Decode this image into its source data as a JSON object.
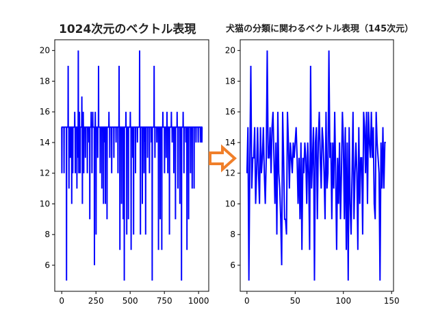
{
  "figure": {
    "background": "#ffffff",
    "arrow": {
      "icon": "right-arrow-icon",
      "color": "#f07f2a",
      "direction": "right"
    }
  },
  "chart_data": [
    {
      "type": "line",
      "title": "1024次元のベクトル表現",
      "xlabel": "",
      "ylabel": "",
      "xlim": [
        -51,
        1074
      ],
      "ylim": [
        4.3,
        20.7
      ],
      "xticks": [
        0,
        250,
        500,
        750,
        1000
      ],
      "yticks": [
        6,
        8,
        10,
        12,
        14,
        16,
        18,
        20
      ],
      "grid": false,
      "line_color": "#0000ff",
      "n_points": 1024,
      "description": "Mostly flat at 15 with frequent dips to 5–14 and occasional spikes up to 20",
      "baseline": 15,
      "events": [
        [
          0,
          12
        ],
        [
          8,
          15
        ],
        [
          16,
          12
        ],
        [
          24,
          15
        ],
        [
          34,
          5
        ],
        [
          38,
          15
        ],
        [
          46,
          19
        ],
        [
          52,
          11
        ],
        [
          56,
          15
        ],
        [
          62,
          13
        ],
        [
          66,
          15
        ],
        [
          72,
          10
        ],
        [
          76,
          15
        ],
        [
          80,
          12
        ],
        [
          86,
          15
        ],
        [
          94,
          16
        ],
        [
          98,
          12
        ],
        [
          104,
          15
        ],
        [
          110,
          11
        ],
        [
          116,
          13
        ],
        [
          120,
          20
        ],
        [
          124,
          12
        ],
        [
          128,
          16
        ],
        [
          134,
          12
        ],
        [
          140,
          15
        ],
        [
          146,
          17
        ],
        [
          150,
          10
        ],
        [
          156,
          16
        ],
        [
          160,
          12
        ],
        [
          166,
          15
        ],
        [
          172,
          13
        ],
        [
          178,
          15
        ],
        [
          186,
          12
        ],
        [
          190,
          15
        ],
        [
          198,
          14
        ],
        [
          204,
          9
        ],
        [
          210,
          15
        ],
        [
          214,
          16
        ],
        [
          220,
          12
        ],
        [
          226,
          16
        ],
        [
          232,
          15
        ],
        [
          238,
          6
        ],
        [
          244,
          16
        ],
        [
          250,
          8
        ],
        [
          256,
          15
        ],
        [
          262,
          13
        ],
        [
          268,
          19
        ],
        [
          274,
          15
        ],
        [
          280,
          12
        ],
        [
          286,
          15
        ],
        [
          292,
          11
        ],
        [
          298,
          15
        ],
        [
          304,
          10
        ],
        [
          310,
          14
        ],
        [
          318,
          10
        ],
        [
          324,
          15
        ],
        [
          330,
          9
        ],
        [
          336,
          15
        ],
        [
          344,
          16
        ],
        [
          350,
          13
        ],
        [
          356,
          15
        ],
        [
          364,
          12
        ],
        [
          372,
          15
        ],
        [
          380,
          13
        ],
        [
          388,
          15
        ],
        [
          396,
          14
        ],
        [
          404,
          15
        ],
        [
          410,
          12
        ],
        [
          418,
          19
        ],
        [
          424,
          7
        ],
        [
          430,
          15
        ],
        [
          436,
          10
        ],
        [
          442,
          15
        ],
        [
          448,
          9
        ],
        [
          456,
          5
        ],
        [
          462,
          15
        ],
        [
          468,
          16
        ],
        [
          474,
          8
        ],
        [
          480,
          15
        ],
        [
          486,
          9
        ],
        [
          492,
          15
        ],
        [
          500,
          16
        ],
        [
          506,
          7
        ],
        [
          512,
          15
        ],
        [
          518,
          13
        ],
        [
          524,
          8
        ],
        [
          530,
          15
        ],
        [
          538,
          12
        ],
        [
          546,
          15
        ],
        [
          552,
          14
        ],
        [
          560,
          15
        ],
        [
          568,
          20
        ],
        [
          574,
          8
        ],
        [
          580,
          15
        ],
        [
          588,
          10
        ],
        [
          594,
          15
        ],
        [
          600,
          12
        ],
        [
          606,
          14
        ],
        [
          612,
          8
        ],
        [
          618,
          15
        ],
        [
          626,
          13
        ],
        [
          632,
          15
        ],
        [
          640,
          12
        ],
        [
          646,
          15
        ],
        [
          654,
          14
        ],
        [
          660,
          5
        ],
        [
          666,
          15
        ],
        [
          674,
          19
        ],
        [
          680,
          13
        ],
        [
          686,
          15
        ],
        [
          694,
          14
        ],
        [
          700,
          15
        ],
        [
          706,
          7
        ],
        [
          712,
          15
        ],
        [
          718,
          9
        ],
        [
          724,
          15
        ],
        [
          730,
          7
        ],
        [
          738,
          16
        ],
        [
          744,
          15
        ],
        [
          750,
          12
        ],
        [
          756,
          15
        ],
        [
          762,
          13
        ],
        [
          768,
          16
        ],
        [
          774,
          12
        ],
        [
          780,
          15
        ],
        [
          786,
          8
        ],
        [
          792,
          15
        ],
        [
          800,
          16
        ],
        [
          806,
          14
        ],
        [
          812,
          15
        ],
        [
          818,
          12
        ],
        [
          824,
          15
        ],
        [
          830,
          9
        ],
        [
          836,
          15
        ],
        [
          842,
          16
        ],
        [
          848,
          11
        ],
        [
          854,
          15
        ],
        [
          862,
          10
        ],
        [
          868,
          15
        ],
        [
          874,
          5
        ],
        [
          880,
          15
        ],
        [
          886,
          16
        ],
        [
          892,
          12
        ],
        [
          898,
          15
        ],
        [
          906,
          14
        ],
        [
          914,
          7
        ],
        [
          920,
          15
        ],
        [
          926,
          9
        ],
        [
          934,
          15
        ],
        [
          940,
          12
        ],
        [
          946,
          15
        ],
        [
          952,
          11
        ],
        [
          958,
          15
        ],
        [
          966,
          11
        ],
        [
          972,
          15
        ],
        [
          980,
          14
        ],
        [
          988,
          15
        ],
        [
          996,
          14
        ],
        [
          1004,
          15
        ],
        [
          1012,
          14
        ],
        [
          1023,
          14
        ]
      ]
    },
    {
      "type": "line",
      "title": "犬猫の分類に関わるベクトル表現（145次元）",
      "xlabel": "",
      "ylabel": "",
      "xlim": [
        -7,
        152
      ],
      "ylim": [
        4.3,
        20.7
      ],
      "xticks": [
        0,
        50,
        100,
        150
      ],
      "yticks": [
        6,
        8,
        10,
        12,
        14,
        16,
        18,
        20
      ],
      "grid": false,
      "line_color": "#0000ff",
      "x": "0..144",
      "values": [
        12,
        15,
        5,
        13,
        19,
        11,
        13,
        13,
        15,
        10,
        12,
        15,
        12,
        10,
        15,
        12,
        13,
        15,
        12,
        10,
        13,
        20,
        13,
        13,
        15,
        12,
        15,
        16,
        13,
        10,
        14,
        8,
        16,
        12,
        11,
        9,
        6,
        16,
        13,
        9,
        9,
        8,
        16,
        14,
        11,
        14,
        13,
        12,
        14,
        13,
        14,
        15,
        13,
        10,
        13,
        9,
        14,
        7,
        13,
        12,
        14,
        13,
        10,
        14,
        12,
        7,
        19,
        11,
        13,
        15,
        5,
        14,
        15,
        9,
        14,
        16,
        13,
        11,
        15,
        14,
        12,
        9,
        16,
        11,
        12,
        20,
        13,
        14,
        9,
        14,
        11,
        16,
        12,
        7,
        13,
        10,
        14,
        9,
        12,
        16,
        14,
        9,
        15,
        7,
        14,
        5,
        15,
        10,
        8,
        12,
        16,
        9,
        12,
        14,
        12,
        7,
        15,
        10,
        13,
        13,
        8,
        16,
        15,
        12,
        16,
        10,
        16,
        14,
        13,
        16,
        13,
        15,
        10,
        9,
        16,
        14,
        13,
        12,
        5,
        14,
        11,
        15,
        11,
        14,
        14
      ]
    }
  ]
}
